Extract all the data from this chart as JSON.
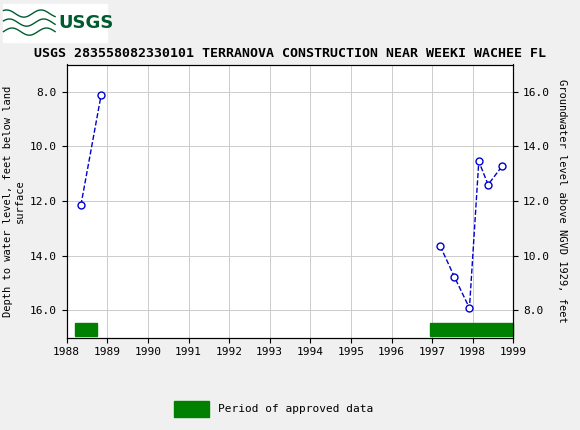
{
  "title": "USGS 283558082330101 TERRANOVA CONSTRUCTION NEAR WEEKI WACHEE FL",
  "segments": [
    {
      "x": [
        1988.35,
        1988.85
      ],
      "y": [
        12.15,
        8.1
      ]
    },
    {
      "x": [
        1997.2,
        1997.55,
        1997.92,
        1998.15,
        1998.38,
        1998.72
      ],
      "y": [
        13.65,
        14.78,
        15.92,
        10.55,
        11.4,
        10.73
      ]
    }
  ],
  "xlim": [
    1988,
    1999
  ],
  "ylim_left": [
    17.0,
    7.0
  ],
  "ylim_right": [
    7.0,
    17.0
  ],
  "y_ticks_left": [
    8.0,
    10.0,
    12.0,
    14.0,
    16.0
  ],
  "y_ticks_right": [
    8.0,
    10.0,
    12.0,
    14.0,
    16.0
  ],
  "x_ticks": [
    1988,
    1989,
    1990,
    1991,
    1992,
    1993,
    1994,
    1995,
    1996,
    1997,
    1998,
    1999
  ],
  "ylabel_left": "Depth to water level, feet below land\nsurface",
  "ylabel_right": "Groundwater level above NGVD 1929, feet",
  "line_color": "#0000cc",
  "marker_facecolor": "white",
  "marker_edgecolor": "#0000cc",
  "approved_bars": [
    {
      "x_start": 1988.2,
      "x_end": 1988.75
    },
    {
      "x_start": 1996.95,
      "x_end": 1999.0
    }
  ],
  "approved_bar_color": "#008000",
  "approved_bar_label": "Period of approved data",
  "header_bg_color": "#005c2e",
  "background_color": "#f0f0f0",
  "plot_bg_color": "#ffffff",
  "grid_color": "#cccccc",
  "title_fontsize": 9.5,
  "axis_label_fontsize": 7.5,
  "tick_fontsize": 8
}
